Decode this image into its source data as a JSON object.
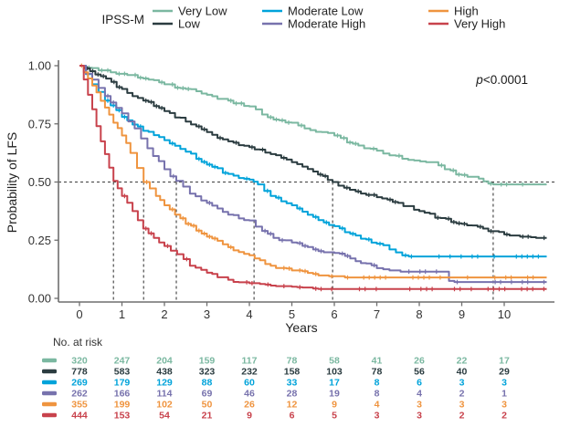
{
  "legend": {
    "title": "IPSS-M"
  },
  "stats": {
    "p_label": "p",
    "p_value": "<0.0001"
  },
  "at_risk_header": "No. at risk",
  "chart_data": {
    "type": "line",
    "subtype": "kaplan-meier-step",
    "title": "",
    "xlabel": "Years",
    "ylabel": "Probability of LFS",
    "xlim": [
      0,
      10.9
    ],
    "ylim": [
      0,
      1
    ],
    "x_ticks": [
      0,
      1,
      2,
      3,
      4,
      5,
      6,
      7,
      8,
      9,
      10
    ],
    "y_ticks": [
      1.0,
      0.75,
      0.5,
      0.25,
      0.0
    ],
    "grid": false,
    "legend_position": "top",
    "reference_line_y": 0.5,
    "p_value_annotation": "p<0.0001",
    "median_lines_years": [
      0.8,
      1.51,
      2.28,
      4.11,
      5.96,
      9.74
    ],
    "series": [
      {
        "name": "Very Low",
        "color": "#7bb8a1",
        "median_years": 9.74,
        "at_risk": [
          320,
          247,
          204,
          159,
          117,
          78,
          58,
          41,
          26,
          22,
          17
        ],
        "points": [
          [
            0,
            1.0
          ],
          [
            0.3,
            0.99
          ],
          [
            0.6,
            0.98
          ],
          [
            1,
            0.965
          ],
          [
            1.5,
            0.945
          ],
          [
            2,
            0.92
          ],
          [
            2.5,
            0.9
          ],
          [
            3,
            0.875
          ],
          [
            3.5,
            0.85
          ],
          [
            4,
            0.825
          ],
          [
            4.3,
            0.79
          ],
          [
            4.7,
            0.765
          ],
          [
            5,
            0.755
          ],
          [
            5.3,
            0.73
          ],
          [
            5.7,
            0.715
          ],
          [
            6,
            0.7
          ],
          [
            6.3,
            0.67
          ],
          [
            6.7,
            0.645
          ],
          [
            7,
            0.635
          ],
          [
            7.3,
            0.615
          ],
          [
            7.6,
            0.6
          ],
          [
            8.3,
            0.585
          ],
          [
            8.6,
            0.555
          ],
          [
            9.0,
            0.53
          ],
          [
            9.4,
            0.515
          ],
          [
            9.74,
            0.49
          ],
          [
            11,
            0.49
          ]
        ]
      },
      {
        "name": "Low",
        "color": "#2b3c40",
        "median_years": 5.96,
        "at_risk": [
          778,
          583,
          438,
          323,
          232,
          158,
          103,
          78,
          56,
          40,
          29
        ],
        "points": [
          [
            0,
            1.0
          ],
          [
            0.5,
            0.955
          ],
          [
            1,
            0.9
          ],
          [
            1.5,
            0.85
          ],
          [
            2,
            0.805
          ],
          [
            2.5,
            0.76
          ],
          [
            3,
            0.715
          ],
          [
            3.5,
            0.675
          ],
          [
            4,
            0.65
          ],
          [
            4.5,
            0.62
          ],
          [
            5,
            0.585
          ],
          [
            5.5,
            0.545
          ],
          [
            5.96,
            0.5
          ],
          [
            6.5,
            0.46
          ],
          [
            7,
            0.435
          ],
          [
            7.5,
            0.41
          ],
          [
            8,
            0.375
          ],
          [
            8.5,
            0.345
          ],
          [
            9,
            0.32
          ],
          [
            9.5,
            0.3
          ],
          [
            10,
            0.275
          ],
          [
            10.5,
            0.265
          ],
          [
            11,
            0.26
          ]
        ]
      },
      {
        "name": "Moderate Low",
        "color": "#00a3da",
        "median_years": 4.11,
        "at_risk": [
          269,
          179,
          129,
          88,
          60,
          33,
          17,
          8,
          6,
          3,
          3
        ],
        "points": [
          [
            0,
            1.0
          ],
          [
            0.3,
            0.92
          ],
          [
            0.6,
            0.85
          ],
          [
            1,
            0.78
          ],
          [
            1.5,
            0.72
          ],
          [
            2,
            0.68
          ],
          [
            2.5,
            0.63
          ],
          [
            3,
            0.575
          ],
          [
            3.5,
            0.535
          ],
          [
            4,
            0.51
          ],
          [
            4.2,
            0.49
          ],
          [
            4.5,
            0.44
          ],
          [
            5,
            0.4
          ],
          [
            5.5,
            0.35
          ],
          [
            6,
            0.31
          ],
          [
            6.5,
            0.27
          ],
          [
            7,
            0.235
          ],
          [
            7.3,
            0.21
          ],
          [
            7.75,
            0.18
          ],
          [
            11,
            0.18
          ]
        ]
      },
      {
        "name": "Moderate High",
        "color": "#7772ad",
        "median_years": 2.28,
        "at_risk": [
          262,
          166,
          114,
          69,
          46,
          28,
          19,
          8,
          4,
          2,
          1
        ],
        "points": [
          [
            0,
            1.0
          ],
          [
            0.3,
            0.94
          ],
          [
            0.6,
            0.87
          ],
          [
            1,
            0.795
          ],
          [
            1.3,
            0.73
          ],
          [
            1.6,
            0.645
          ],
          [
            2,
            0.555
          ],
          [
            2.28,
            0.505
          ],
          [
            2.6,
            0.45
          ],
          [
            3,
            0.41
          ],
          [
            3.5,
            0.36
          ],
          [
            4,
            0.335
          ],
          [
            4.3,
            0.29
          ],
          [
            4.7,
            0.25
          ],
          [
            5,
            0.24
          ],
          [
            5.5,
            0.21
          ],
          [
            6,
            0.195
          ],
          [
            6.5,
            0.16
          ],
          [
            7,
            0.13
          ],
          [
            7.3,
            0.12
          ],
          [
            8.6,
            0.115
          ],
          [
            8.7,
            0.075
          ],
          [
            11,
            0.07
          ]
        ]
      },
      {
        "name": "High",
        "color": "#ef943f",
        "median_years": 1.51,
        "at_risk": [
          355,
          199,
          102,
          50,
          26,
          12,
          9,
          4,
          3,
          3,
          3
        ],
        "points": [
          [
            0,
            1.0
          ],
          [
            0.2,
            0.945
          ],
          [
            0.4,
            0.885
          ],
          [
            0.6,
            0.82
          ],
          [
            0.8,
            0.755
          ],
          [
            1,
            0.7
          ],
          [
            1.2,
            0.625
          ],
          [
            1.51,
            0.5
          ],
          [
            1.8,
            0.44
          ],
          [
            2,
            0.4
          ],
          [
            2.5,
            0.32
          ],
          [
            3,
            0.265
          ],
          [
            3.5,
            0.22
          ],
          [
            4,
            0.185
          ],
          [
            4.5,
            0.14
          ],
          [
            5,
            0.12
          ],
          [
            5.5,
            0.105
          ],
          [
            6,
            0.095
          ],
          [
            6.5,
            0.09
          ],
          [
            11,
            0.09
          ]
        ]
      },
      {
        "name": "Very High",
        "color": "#c8424c",
        "median_years": 0.8,
        "at_risk": [
          444,
          153,
          54,
          21,
          9,
          6,
          5,
          3,
          3,
          2,
          2
        ],
        "points": [
          [
            0,
            1.0
          ],
          [
            0.2,
            0.875
          ],
          [
            0.4,
            0.74
          ],
          [
            0.6,
            0.62
          ],
          [
            0.8,
            0.505
          ],
          [
            1,
            0.44
          ],
          [
            1.25,
            0.375
          ],
          [
            1.5,
            0.3
          ],
          [
            1.75,
            0.26
          ],
          [
            2,
            0.225
          ],
          [
            2.3,
            0.19
          ],
          [
            2.6,
            0.14
          ],
          [
            3,
            0.11
          ],
          [
            3.5,
            0.08
          ],
          [
            4,
            0.065
          ],
          [
            4.5,
            0.055
          ],
          [
            5,
            0.05
          ],
          [
            5.5,
            0.042
          ],
          [
            6,
            0.04
          ],
          [
            11,
            0.04
          ]
        ]
      }
    ]
  }
}
